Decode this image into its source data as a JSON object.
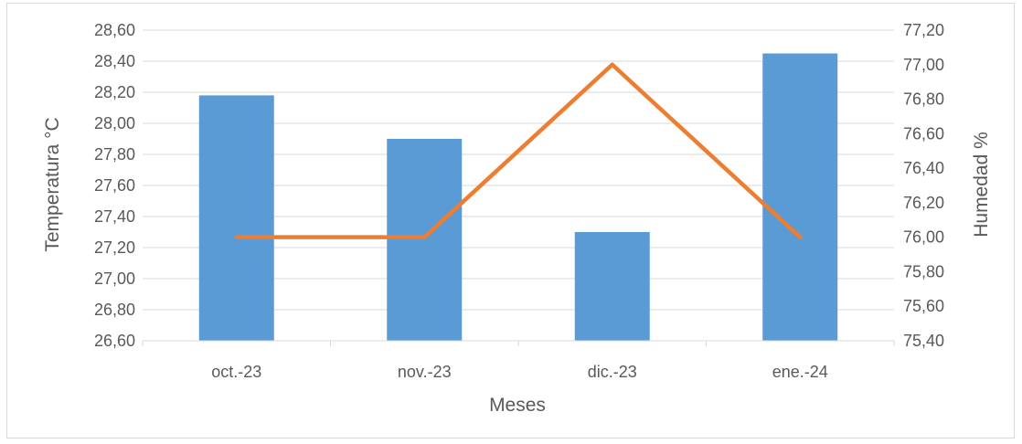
{
  "chart_data": {
    "type": "bar+line",
    "categories": [
      "oct.-23",
      "nov.-23",
      "dic.-23",
      "ene.-24"
    ],
    "series": [
      {
        "type": "bar",
        "axis": "left",
        "color": "#5b9bd5",
        "values": [
          28.18,
          27.9,
          27.3,
          28.45
        ]
      },
      {
        "type": "line",
        "axis": "right",
        "color": "#ed7d31",
        "values": [
          76.0,
          76.0,
          77.0,
          76.0
        ]
      }
    ],
    "xlabel": "Meses",
    "ylabel_left": "Temperatura °C",
    "ylabel_right": "Humedad %",
    "ylim_left": [
      26.6,
      28.6
    ],
    "ylim_right": [
      75.4,
      77.2
    ],
    "yticks_left": [
      "26,60",
      "26,80",
      "27,00",
      "27,20",
      "27,40",
      "27,60",
      "27,80",
      "28,00",
      "28,20",
      "28,40",
      "28,60"
    ],
    "yticks_right": [
      "75,40",
      "75,60",
      "75,80",
      "76,00",
      "76,20",
      "76,40",
      "76,60",
      "76,80",
      "77,00",
      "77,20"
    ],
    "grid": true,
    "legend": "none"
  }
}
